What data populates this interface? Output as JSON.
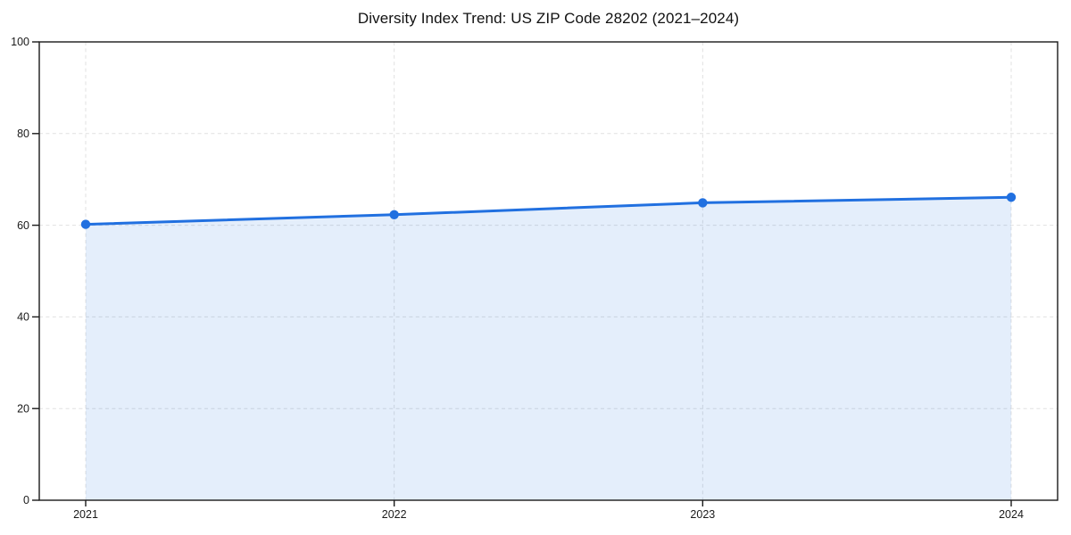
{
  "title": "Diversity Index Trend: US ZIP Code 28202 (2021–2024)",
  "chart_data": {
    "type": "area",
    "title": "Diversity Index Trend: US ZIP Code 28202 (2021–2024)",
    "series_name": "Diversity Index",
    "categories": [
      "2021",
      "2022",
      "2023",
      "2024"
    ],
    "values": [
      60.2,
      62.3,
      64.9,
      66.1
    ],
    "xlabel": "",
    "ylabel": "",
    "ylim": [
      0,
      100
    ],
    "yticks": [
      0,
      20,
      40,
      60,
      80,
      100
    ],
    "grid": "dashed, horizontal and vertical",
    "legend": "none",
    "colors": {
      "line": "#2170e0",
      "marker": "#2170e0",
      "fill": "rgba(33, 112, 224, 0.12)",
      "grid": "#e0e0e0",
      "spine": "#1a1a1a",
      "tick_label": "#1a1a1a",
      "title": "#111111",
      "background": "#ffffff"
    }
  }
}
